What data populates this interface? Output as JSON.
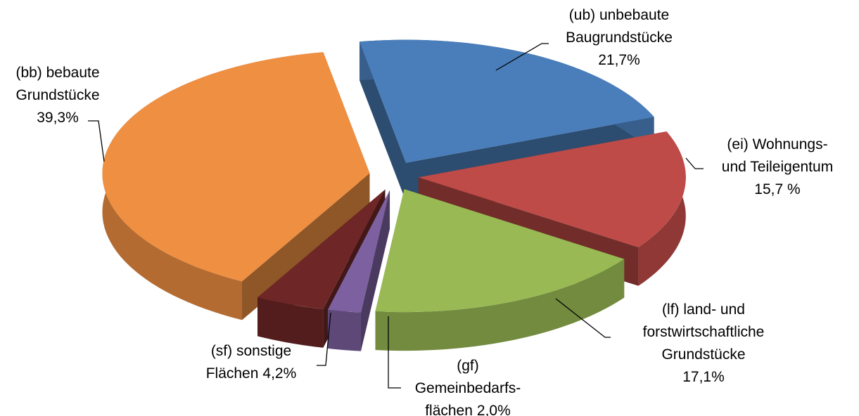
{
  "chart_data": {
    "type": "pie3d",
    "categories": [
      [
        "(ub) unbebaute",
        "Baugrundstücke"
      ],
      [
        "(ei) Wohnungs-",
        "und Teileigentum"
      ],
      [
        "(lf) land- und",
        "forstwirtschaftliche",
        "Grundstücke"
      ],
      [
        "(gf)",
        "Gemeinbedarfs-",
        "flächen"
      ],
      [
        "(sf) sonstige",
        "Flächen"
      ],
      [
        "(bb) bebaute",
        "Grundstücke"
      ]
    ],
    "values": [
      21.7,
      15.7,
      17.1,
      2.0,
      4.2,
      39.3
    ],
    "value_labels": [
      "21,7%",
      "15,7 %",
      "17,1%",
      "2,0%",
      "4,2%",
      "39,3%"
    ],
    "colors": [
      "#4a7ebb",
      "#be4b48",
      "#98b954",
      "#7d60a0",
      "#6e2626",
      "#ee8f42"
    ]
  }
}
